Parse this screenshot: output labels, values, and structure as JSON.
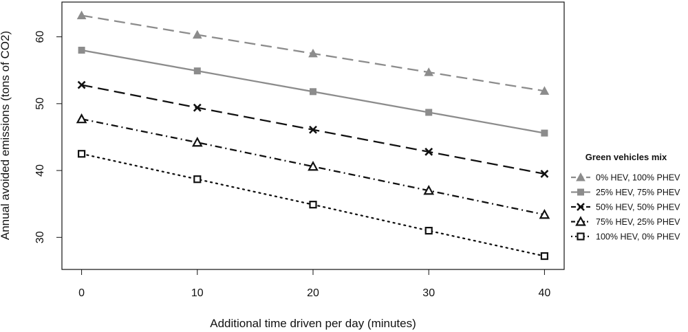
{
  "chart_data": {
    "type": "line",
    "title": "",
    "xlabel": "Additional time driven per day (minutes)",
    "ylabel": "Annual avoided emissions (tons of CO2)",
    "x": [
      0,
      10,
      20,
      30,
      40
    ],
    "xticks": [
      0,
      10,
      20,
      30,
      40
    ],
    "yticks": [
      30,
      40,
      50,
      60
    ],
    "xlim": [
      -1.7,
      41.7
    ],
    "ylim": [
      25.2,
      65.2
    ],
    "grid": false,
    "legend_position": "right",
    "legend_title": "Green vehicles mix",
    "series": [
      {
        "name": "0% HEV, 100% PHEV",
        "values": [
          63.2,
          60.3,
          57.5,
          54.7,
          51.9
        ],
        "color": "#8c8c8c",
        "marker": "triangle-filled",
        "dash": "long-dash"
      },
      {
        "name": "25% HEV, 75% PHEV",
        "values": [
          58.0,
          54.9,
          51.8,
          48.7,
          45.6
        ],
        "color": "#8c8c8c",
        "marker": "square-filled",
        "dash": "solid"
      },
      {
        "name": "50% HEV, 50% PHEV",
        "values": [
          52.8,
          49.4,
          46.1,
          42.8,
          39.5
        ],
        "color": "#111111",
        "marker": "x",
        "dash": "long-dash"
      },
      {
        "name": "75% HEV, 25% PHEV",
        "values": [
          47.7,
          44.2,
          40.6,
          37.0,
          33.4
        ],
        "color": "#111111",
        "marker": "triangle-open",
        "dash": "dash-dot"
      },
      {
        "name": "100% HEV, 0% PHEV",
        "values": [
          42.5,
          38.7,
          34.9,
          31.0,
          27.2
        ],
        "color": "#111111",
        "marker": "square-open",
        "dash": "dotted"
      }
    ]
  }
}
